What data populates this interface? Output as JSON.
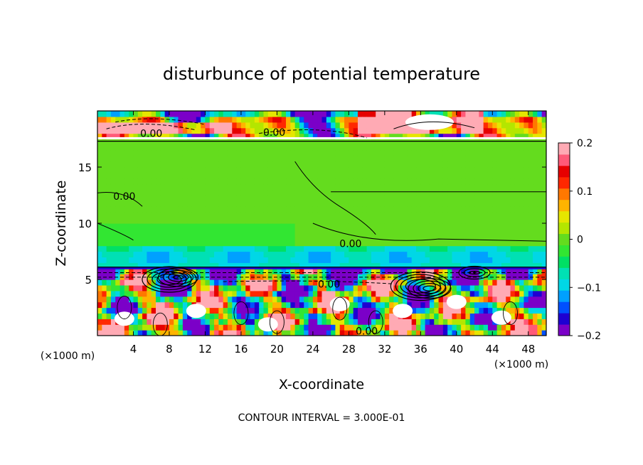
{
  "chart_data": {
    "type": "heatmap",
    "title": "disturbunce of potential temperature",
    "xlabel": "X-coordinate",
    "ylabel": "Z-coordinate",
    "x_unit": "(×1000 m)",
    "x_unit_right": "(×1000 m)",
    "x_ticks": [
      4,
      8,
      12,
      16,
      20,
      24,
      28,
      32,
      36,
      40,
      44,
      48
    ],
    "y_ticks": [
      5,
      10,
      15
    ],
    "xlim": [
      0,
      50
    ],
    "ylim": [
      0,
      20
    ],
    "footer": "CONTOUR INTERVAL = 3.000E-01",
    "colorbar": {
      "ticks": [
        "0.2",
        "0.1",
        "0",
        "−0.1",
        "−0.2"
      ],
      "tick_values": [
        0.2,
        0.1,
        0,
        -0.1,
        -0.2
      ],
      "range": [
        -0.2,
        0.2
      ],
      "colors": [
        "#7b00c8",
        "#1e00d2",
        "#0050ff",
        "#00a0ff",
        "#00d7e6",
        "#00e0b4",
        "#00e064",
        "#32e632",
        "#64dc1e",
        "#b4e600",
        "#e6e600",
        "#ffb400",
        "#ff7800",
        "#ff2800",
        "#e60000",
        "#ff5a78",
        "#ffaab4"
      ]
    },
    "contour_labels": [
      {
        "text": "0.00",
        "x": 6.0,
        "z": 18.0
      },
      {
        "text": "0.00",
        "x": 19.7,
        "z": 18.1
      },
      {
        "text": "0.00",
        "x": 3.0,
        "z": 12.4
      },
      {
        "text": "0.00",
        "x": 28.2,
        "z": 8.2
      },
      {
        "text": "0.00",
        "x": 25.8,
        "z": 4.6
      },
      {
        "text": "0.00",
        "x": 30.0,
        "z": 0.4
      }
    ],
    "regions": {
      "upper_layer_z": [
        17.5,
        20
      ],
      "stable_layer_z": [
        8,
        17.5
      ],
      "cool_band_z": [
        5.8,
        8
      ],
      "front_z": 6,
      "lower_turbulent_z": [
        0,
        5.8
      ]
    }
  }
}
